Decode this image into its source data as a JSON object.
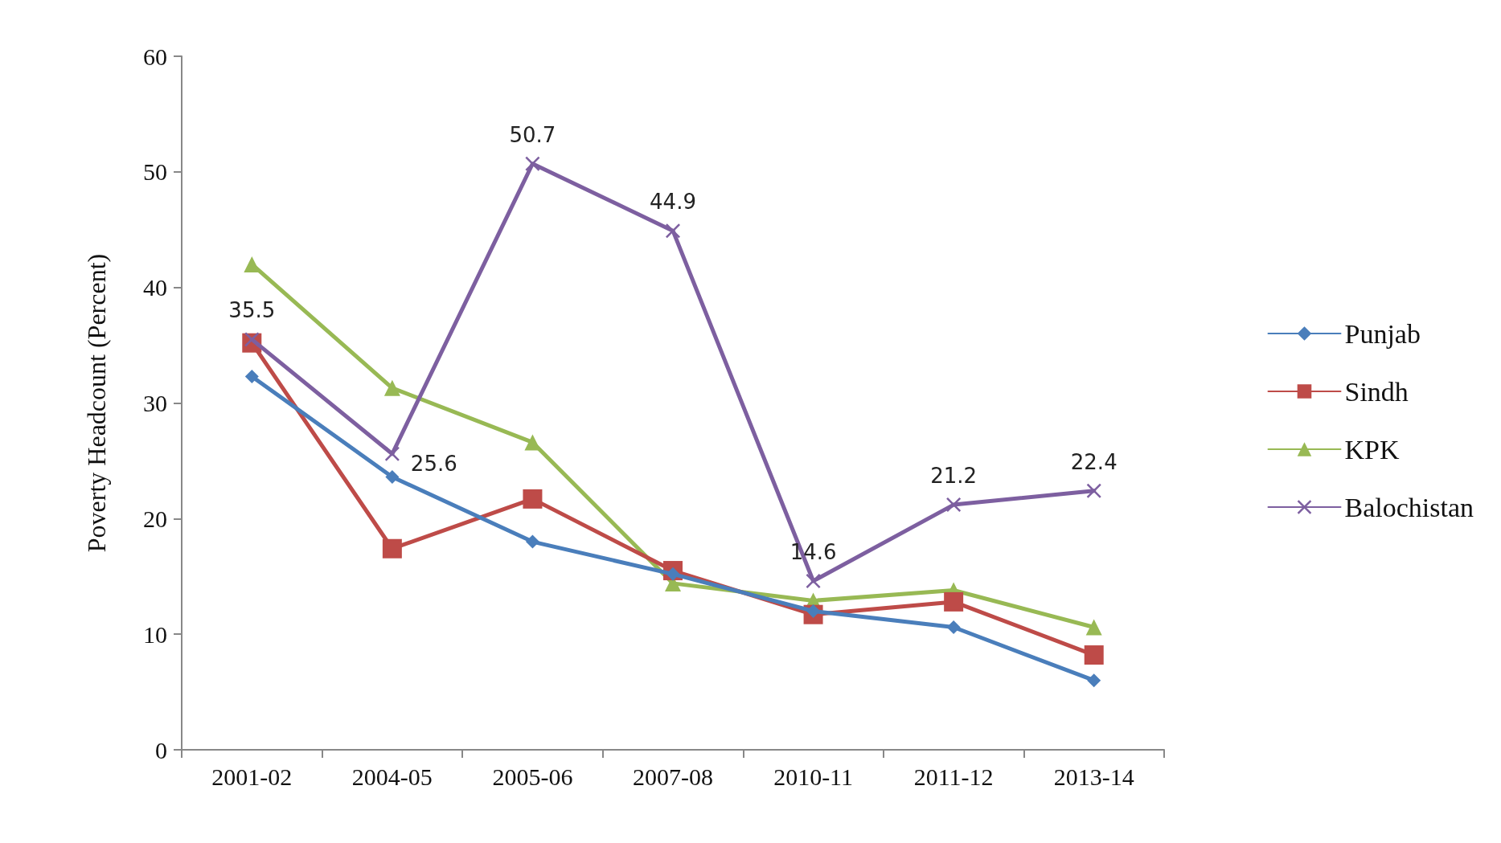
{
  "chart_data": {
    "type": "line",
    "ylabel": "Poverty Headcount (Percent)",
    "categories": [
      "2001-02",
      "2004-05",
      "2005-06",
      "2007-08",
      "2010-11",
      "2011-12",
      "2013-14"
    ],
    "series": [
      {
        "name": "Punjab",
        "color": "#4a7ebb",
        "marker": "diamond",
        "values": [
          32.3,
          23.6,
          18.0,
          15.2,
          12.0,
          10.6,
          6.0
        ]
      },
      {
        "name": "Sindh",
        "color": "#be4b48",
        "marker": "square",
        "values": [
          35.2,
          17.4,
          21.7,
          15.5,
          11.7,
          12.8,
          8.2
        ]
      },
      {
        "name": "KPK",
        "color": "#98b954",
        "marker": "triangle",
        "values": [
          42.0,
          31.3,
          26.6,
          14.4,
          12.9,
          13.8,
          10.6
        ]
      },
      {
        "name": "Balochistan",
        "color": "#7d5fa0",
        "marker": "cross",
        "values": [
          35.5,
          25.6,
          50.7,
          44.9,
          14.6,
          21.2,
          22.4
        ],
        "value_labels": [
          "35.5",
          "25.6",
          "50.7",
          "44.9",
          "14.6",
          "21.2",
          "22.4"
        ]
      }
    ],
    "ylim": [
      0,
      60
    ],
    "yticks": [
      0,
      10,
      20,
      30,
      40,
      50,
      60
    ],
    "grid": false,
    "legend": "right"
  }
}
